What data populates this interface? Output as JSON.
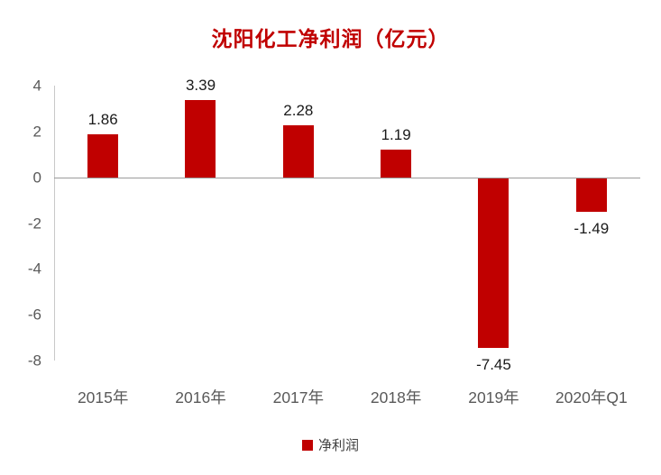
{
  "chart_data": {
    "type": "bar",
    "title": "沈阳化工净利润（亿元）",
    "categories": [
      "2015年",
      "2016年",
      "2017年",
      "2018年",
      "2019年",
      "2020年Q1"
    ],
    "values": [
      1.86,
      3.39,
      2.28,
      1.19,
      -7.45,
      -1.49
    ],
    "labels": [
      "1.86",
      "3.39",
      "2.28",
      "1.19",
      "-7.45",
      "-1.49"
    ],
    "y_ticks": [
      4,
      2,
      0,
      -2,
      -4,
      -6,
      -8
    ],
    "ylim": [
      -8,
      4
    ],
    "grid": false,
    "bar_color": "#C00000",
    "title_color": "#C00000",
    "axis_label_color": "#595959",
    "legend_position": "bottom",
    "legend": [
      {
        "label": "净利润",
        "color": "#C00000"
      }
    ]
  }
}
